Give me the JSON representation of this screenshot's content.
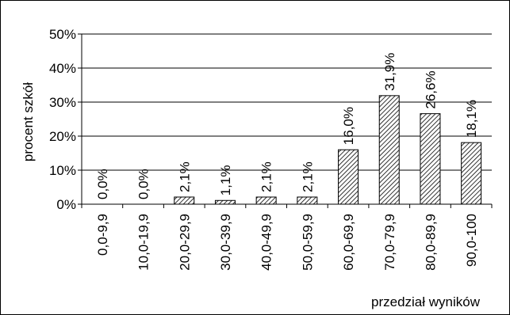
{
  "chart_data": {
    "type": "bar",
    "categories": [
      "0,0-9,9",
      "10,0-19,9",
      "20,0-29,9",
      "30,0-39,9",
      "40,0-49,9",
      "50,0-59,9",
      "60,0-69,9",
      "70,0-79,9",
      "80,0-89,9",
      "90,0-100"
    ],
    "values": [
      0.0,
      0.0,
      2.1,
      1.1,
      2.1,
      2.1,
      16.0,
      31.9,
      26.6,
      18.1
    ],
    "data_labels": [
      "0,0%",
      "0,0%",
      "2,1%",
      "1,1%",
      "2,1%",
      "2,1%",
      "16,0%",
      "31,9%",
      "26,6%",
      "18,1%"
    ],
    "title": "",
    "xlabel": "przedział wyników",
    "ylabel": "procent szkół",
    "ylim": [
      0,
      50
    ],
    "yticks": [
      0,
      10,
      20,
      30,
      40,
      50
    ],
    "ytick_labels": [
      "0%",
      "10%",
      "20%",
      "30%",
      "40%",
      "50%"
    ],
    "grid": true,
    "legend": "none",
    "bar_fill": "hatched",
    "colors": {
      "bar_stroke": "#000000",
      "hatch": "#000000",
      "grid": "#000000"
    }
  }
}
